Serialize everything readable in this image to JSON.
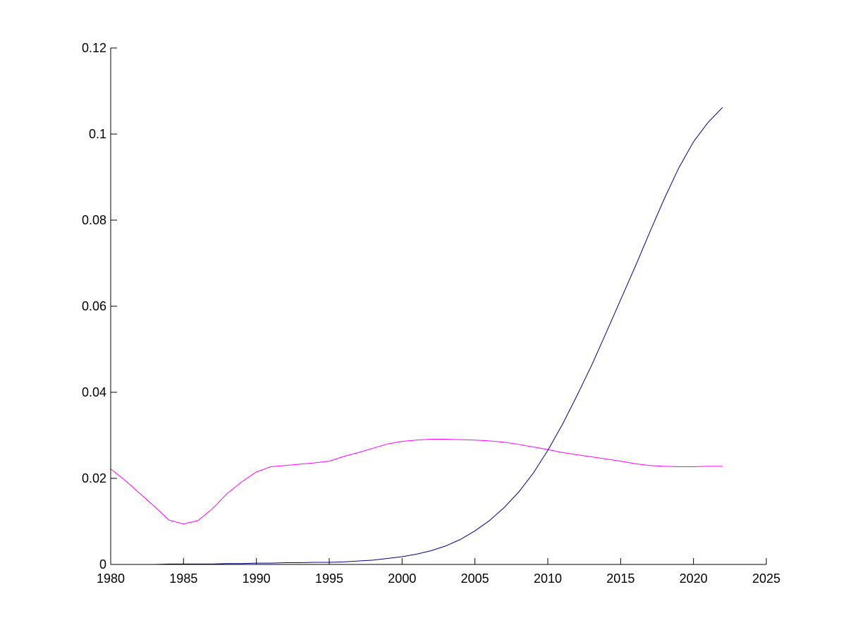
{
  "chart_data": {
    "type": "line",
    "title": "",
    "xlabel": "",
    "ylabel": "",
    "xlim": [
      1980,
      2025
    ],
    "ylim": [
      0,
      0.12
    ],
    "x_ticks": [
      "1980",
      "1985",
      "1990",
      "1995",
      "2000",
      "2005",
      "2010",
      "2015",
      "2020",
      "2025"
    ],
    "y_ticks": [
      "0",
      "0.02",
      "0.04",
      "0.06",
      "0.08",
      "0.1",
      "0.12"
    ],
    "grid": false,
    "legend": "none",
    "series": [
      {
        "color": "#ff00ff",
        "x": [
          1980,
          1981,
          1982,
          1983,
          1984,
          1985,
          1986,
          1987,
          1988,
          1989,
          1990,
          1991,
          1992,
          1993,
          1994,
          1995,
          1996,
          1997,
          1998,
          1999,
          2000,
          2001,
          2002,
          2003,
          2004,
          2005,
          2006,
          2007,
          2008,
          2009,
          2010,
          2011,
          2012,
          2013,
          2014,
          2015,
          2016,
          2017,
          2018,
          2019,
          2020,
          2021,
          2022
        ],
        "y": [
          0.0222,
          0.0195,
          0.0165,
          0.0135,
          0.0103,
          0.0094,
          0.0102,
          0.013,
          0.0165,
          0.0192,
          0.0215,
          0.0227,
          0.023,
          0.0233,
          0.0236,
          0.024,
          0.0251,
          0.026,
          0.027,
          0.028,
          0.0286,
          0.0289,
          0.0291,
          0.0291,
          0.029,
          0.0289,
          0.0287,
          0.0284,
          0.0279,
          0.0273,
          0.0267,
          0.026,
          0.0255,
          0.025,
          0.0245,
          0.024,
          0.0234,
          0.023,
          0.0228,
          0.0227,
          0.0227,
          0.0228,
          0.0228
        ]
      },
      {
        "color": "#00008b",
        "x": [
          1980,
          1981,
          1982,
          1983,
          1984,
          1985,
          1986,
          1987,
          1988,
          1989,
          1990,
          1991,
          1992,
          1993,
          1994,
          1995,
          1996,
          1997,
          1998,
          1999,
          2000,
          2001,
          2002,
          2003,
          2004,
          2005,
          2006,
          2007,
          2008,
          2009,
          2010,
          2011,
          2012,
          2013,
          2014,
          2015,
          2016,
          2017,
          2018,
          2019,
          2020,
          2021,
          2022
        ],
        "y": [
          0.0,
          0.0,
          0.0,
          0.0,
          0.0001,
          0.0001,
          0.0001,
          0.0001,
          0.0002,
          0.0002,
          0.0003,
          0.0003,
          0.0004,
          0.0004,
          0.0005,
          0.0005,
          0.0006,
          0.0008,
          0.001,
          0.0014,
          0.0018,
          0.0024,
          0.0032,
          0.0043,
          0.0058,
          0.0078,
          0.0102,
          0.0132,
          0.0168,
          0.0212,
          0.0265,
          0.0325,
          0.0392,
          0.0462,
          0.0538,
          0.0615,
          0.0692,
          0.0772,
          0.085,
          0.0922,
          0.0982,
          0.1027,
          0.1062
        ]
      }
    ]
  }
}
